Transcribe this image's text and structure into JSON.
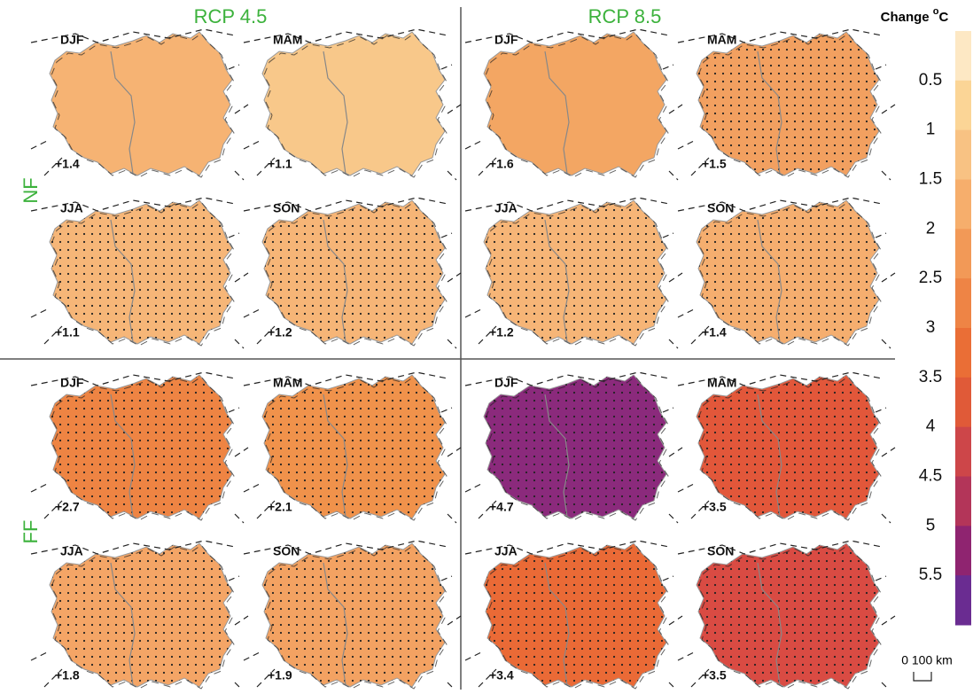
{
  "columns": [
    "RCP 4.5",
    "RCP 8.5"
  ],
  "rows": [
    "NF",
    "FF"
  ],
  "panels": [
    {
      "season": "DJF",
      "change": "+1.4",
      "color": "#f6b373",
      "stippled": false
    },
    {
      "season": "MAM",
      "change": "+1.1",
      "color": "#f8c88a",
      "stippled": false
    },
    {
      "season": "JJA",
      "change": "+1.1",
      "color": "#f6b678",
      "stippled": true
    },
    {
      "season": "SON",
      "change": "+1.2",
      "color": "#f6b577",
      "stippled": true
    },
    {
      "season": "DJF",
      "change": "+1.6",
      "color": "#f3a663",
      "stippled": false
    },
    {
      "season": "MAM",
      "change": "+1.5",
      "color": "#f2a060",
      "stippled": true
    },
    {
      "season": "JJA",
      "change": "+1.2",
      "color": "#f6b577",
      "stippled": true
    },
    {
      "season": "SON",
      "change": "+1.4",
      "color": "#f5ae6f",
      "stippled": true
    },
    {
      "season": "DJF",
      "change": "+2.7",
      "color": "#ee8443",
      "stippled": true
    },
    {
      "season": "MAM",
      "change": "+2.1",
      "color": "#f0924b",
      "stippled": true
    },
    {
      "season": "JJA",
      "change": "+1.8",
      "color": "#f4a566",
      "stippled": true
    },
    {
      "season": "SON",
      "change": "+1.9",
      "color": "#f3a262",
      "stippled": true
    },
    {
      "season": "DJF",
      "change": "+4.7",
      "color": "#8b2a7c",
      "stippled": true
    },
    {
      "season": "MAM",
      "change": "+3.5",
      "color": "#e2573a",
      "stippled": true
    },
    {
      "season": "JJA",
      "change": "+3.4",
      "color": "#ea6a36",
      "stippled": true
    },
    {
      "season": "SON",
      "change": "+3.5",
      "color": "#d94b43",
      "stippled": true
    }
  ],
  "colorbar": {
    "title": "Change",
    "unit_sup": "o",
    "unit": "C",
    "lim": [
      0,
      6
    ],
    "ticks": [
      0.5,
      1,
      1.5,
      2,
      2.5,
      3,
      3.5,
      4,
      4.5,
      5,
      5.5
    ],
    "colors": [
      "#fde8c4",
      "#fbd596",
      "#f8c283",
      "#f6ae6c",
      "#f29957",
      "#ee8445",
      "#ea6e36",
      "#e05a38",
      "#cd4649",
      "#b33559",
      "#8f2470",
      "#6a2c91"
    ]
  },
  "scale_bar": "0 100 km"
}
